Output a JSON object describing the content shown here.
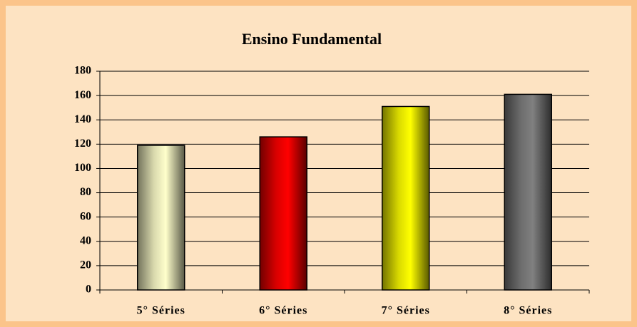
{
  "chart_data": {
    "type": "bar",
    "title": "Ensino Fundamental",
    "categories": [
      "5° Séries",
      "6° Séries",
      "7° Séries",
      "8° Séries"
    ],
    "values": [
      119,
      126,
      151,
      161
    ],
    "colors": [
      "#ffffcc",
      "#ff0000",
      "#ffff00",
      "#808080"
    ],
    "ylim": [
      0,
      180
    ],
    "yticks": [
      0,
      20,
      40,
      60,
      80,
      100,
      120,
      140,
      160,
      180
    ],
    "grid": true
  }
}
